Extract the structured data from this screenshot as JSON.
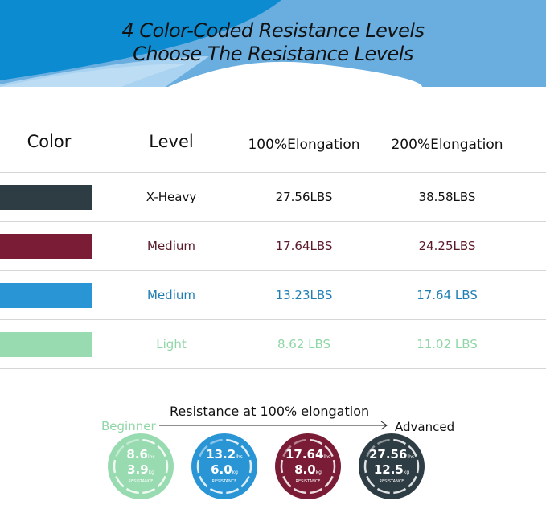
{
  "banner": {
    "line1": "4 Color-Coded Resistance Levels",
    "line2": "Choose The Resistance Levels"
  },
  "table": {
    "headers": [
      "Color",
      "Level",
      "100%Elongation",
      "200%Elongation"
    ],
    "rows": [
      {
        "swatch": "#2e3c44",
        "text_color": "#111111",
        "level": "X-Heavy",
        "e100": "27.56LBS",
        "e200": "38.58LBS"
      },
      {
        "swatch": "#7a1c35",
        "text_color": "#5a1a2a",
        "level": "Medium",
        "e100": "17.64LBS",
        "e200": "24.25LBS"
      },
      {
        "swatch": "#2a95d5",
        "text_color": "#1f7fb5",
        "level": "Medium",
        "e100": "13.23LBS",
        "e200": "17.64 LBS"
      },
      {
        "swatch": "#98dbb0",
        "text_color": "#8fd6a6",
        "level": "Light",
        "e100": "8.62 LBS",
        "e200": "11.02 LBS"
      }
    ]
  },
  "scale": {
    "title": "Resistance at 100% elongation",
    "start": "Beginner",
    "end": "Advanced"
  },
  "badges": [
    {
      "color": "#98dbb0",
      "lbs": "8.6",
      "kg": "3.9",
      "lbs_unit": "lbs",
      "kg_unit": "kg",
      "label": "RESISTANCE"
    },
    {
      "color": "#2a95d5",
      "lbs": "13.2",
      "kg": "6.0",
      "lbs_unit": "lbs",
      "kg_unit": "kg",
      "label": "RESISTANCE"
    },
    {
      "color": "#7a1c35",
      "lbs": "17.64",
      "kg": "8.0",
      "lbs_unit": "lbs",
      "kg_unit": "kg",
      "label": "RESISTANCE"
    },
    {
      "color": "#2e3c44",
      "lbs": "27.56",
      "kg": "12.5",
      "lbs_unit": "lbs",
      "kg_unit": "kg",
      "label": "RESISTANCE"
    }
  ]
}
